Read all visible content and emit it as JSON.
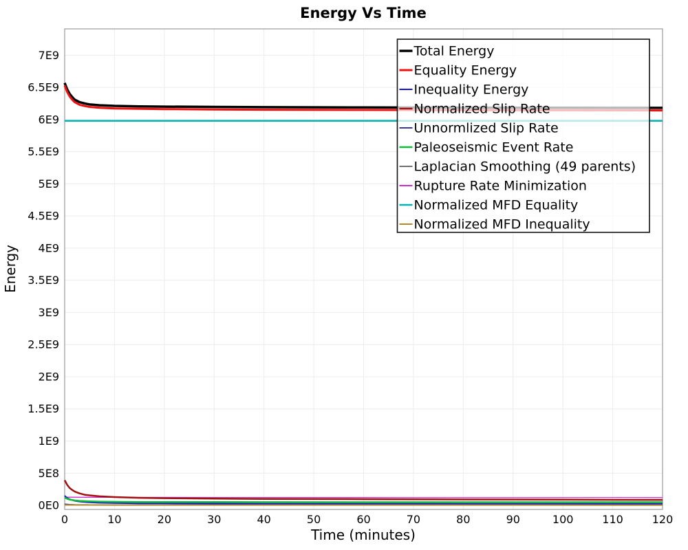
{
  "chart_data": {
    "type": "line",
    "title": "Energy Vs Time",
    "xlabel": "Time (minutes)",
    "ylabel": "Energy",
    "xlim": [
      0,
      120
    ],
    "ylim": [
      -64000000.0,
      7410000000.0
    ],
    "grid": true,
    "legend_position": "top-right-inside",
    "xticks": [
      0,
      10,
      20,
      30,
      40,
      50,
      60,
      70,
      80,
      90,
      100,
      110,
      120
    ],
    "yticks": [
      {
        "v": 0,
        "label": "0E0"
      },
      {
        "v": 500000000.0,
        "label": "5E8"
      },
      {
        "v": 1000000000.0,
        "label": "1E9"
      },
      {
        "v": 1500000000.0,
        "label": "1.5E9"
      },
      {
        "v": 2000000000.0,
        "label": "2E9"
      },
      {
        "v": 2500000000.0,
        "label": "2.5E9"
      },
      {
        "v": 3000000000.0,
        "label": "3E9"
      },
      {
        "v": 3500000000.0,
        "label": "3.5E9"
      },
      {
        "v": 4000000000.0,
        "label": "4E9"
      },
      {
        "v": 4500000000.0,
        "label": "4.5E9"
      },
      {
        "v": 5000000000.0,
        "label": "5E9"
      },
      {
        "v": 5500000000.0,
        "label": "5.5E9"
      },
      {
        "v": 6000000000.0,
        "label": "6E9"
      },
      {
        "v": 6500000000.0,
        "label": "6.5E9"
      },
      {
        "v": 7000000000.0,
        "label": "7E9"
      }
    ],
    "series": [
      {
        "name": "Total Energy",
        "color": "#000000",
        "width": 3.5,
        "points": [
          [
            0,
            6570000000.0
          ],
          [
            0.5,
            6470000000.0
          ],
          [
            1,
            6400000000.0
          ],
          [
            1.5,
            6350000000.0
          ],
          [
            2,
            6310000000.0
          ],
          [
            3,
            6270000000.0
          ],
          [
            4,
            6250000000.0
          ],
          [
            5,
            6235000000.0
          ],
          [
            7,
            6222000000.0
          ],
          [
            10,
            6212000000.0
          ],
          [
            15,
            6205000000.0
          ],
          [
            20,
            6201000000.0
          ],
          [
            30,
            6196000000.0
          ],
          [
            40,
            6192000000.0
          ],
          [
            60,
            6188000000.0
          ],
          [
            80,
            6185000000.0
          ],
          [
            100,
            6183000000.0
          ],
          [
            120,
            6181000000.0
          ]
        ]
      },
      {
        "name": "Equality Energy",
        "color": "#ee1111",
        "width": 3,
        "points": [
          [
            0,
            6530000000.0
          ],
          [
            0.5,
            6430000000.0
          ],
          [
            1,
            6360000000.0
          ],
          [
            1.5,
            6310000000.0
          ],
          [
            2,
            6270000000.0
          ],
          [
            3,
            6230000000.0
          ],
          [
            4,
            6210000000.0
          ],
          [
            5,
            6196000000.0
          ],
          [
            7,
            6183000000.0
          ],
          [
            10,
            6173000000.0
          ],
          [
            15,
            6166000000.0
          ],
          [
            20,
            6162000000.0
          ],
          [
            30,
            6157000000.0
          ],
          [
            40,
            6153000000.0
          ],
          [
            60,
            6149000000.0
          ],
          [
            80,
            6146000000.0
          ],
          [
            100,
            6144000000.0
          ],
          [
            120,
            6142000000.0
          ]
        ]
      },
      {
        "name": "Inequality Energy",
        "color": "#1515cc",
        "width": 2,
        "points": [
          [
            0,
            150000000.0
          ],
          [
            0.5,
            115000000.0
          ],
          [
            1,
            95000000.0
          ],
          [
            2,
            70000000.0
          ],
          [
            3,
            58000000.0
          ],
          [
            5,
            45000000.0
          ],
          [
            7,
            39000000.0
          ],
          [
            10,
            34000000.0
          ],
          [
            15,
            30000000.0
          ],
          [
            20,
            28500000.0
          ],
          [
            30,
            27000000.0
          ],
          [
            40,
            26000000.0
          ],
          [
            60,
            25500000.0
          ],
          [
            80,
            25000000.0
          ],
          [
            100,
            25000000.0
          ],
          [
            120,
            25000000.0
          ]
        ]
      },
      {
        "name": "Normalized Slip Rate",
        "color": "#a01010",
        "width": 2.5,
        "points": [
          [
            0,
            390000000.0
          ],
          [
            0.5,
            320000000.0
          ],
          [
            1,
            270000000.0
          ],
          [
            1.5,
            240000000.0
          ],
          [
            2,
            215000000.0
          ],
          [
            3,
            185000000.0
          ],
          [
            4,
            165000000.0
          ],
          [
            5,
            155000000.0
          ],
          [
            7,
            140000000.0
          ],
          [
            10,
            128000000.0
          ],
          [
            15,
            117000000.0
          ],
          [
            20,
            111000000.0
          ],
          [
            30,
            104000000.0
          ],
          [
            40,
            100000000.0
          ],
          [
            60,
            95000000.0
          ],
          [
            80,
            91000000.0
          ],
          [
            100,
            88000000.0
          ],
          [
            120,
            85000000.0
          ]
        ]
      },
      {
        "name": "Unnormlized Slip Rate",
        "color": "#3a3a9e",
        "width": 1.5,
        "points": [
          [
            0,
            20000000.0
          ],
          [
            1,
            14000000.0
          ],
          [
            2,
            11000000.0
          ],
          [
            5,
            9000000.0
          ],
          [
            10,
            8500000.0
          ],
          [
            30,
            8000000.0
          ],
          [
            120,
            8000000.0
          ]
        ]
      },
      {
        "name": "Paleoseismic Event Rate",
        "color": "#0fbb3a",
        "width": 2.5,
        "points": [
          [
            0,
            120000000.0
          ],
          [
            0.5,
            102000000.0
          ],
          [
            1,
            90000000.0
          ],
          [
            2,
            76000000.0
          ],
          [
            3,
            69000000.0
          ],
          [
            5,
            62000000.0
          ],
          [
            7,
            58000000.0
          ],
          [
            10,
            55000000.0
          ],
          [
            15,
            52000000.0
          ],
          [
            20,
            51000000.0
          ],
          [
            30,
            50000000.0
          ],
          [
            40,
            49000000.0
          ],
          [
            60,
            48500000.0
          ],
          [
            80,
            48000000.0
          ],
          [
            100,
            48000000.0
          ],
          [
            120,
            48000000.0
          ]
        ]
      },
      {
        "name": "Laplacian Smoothing (49 parents)",
        "color": "#707070",
        "width": 1.5,
        "points": [
          [
            0,
            6000000.0
          ],
          [
            5,
            5000000.0
          ],
          [
            120,
            4500000.0
          ]
        ]
      },
      {
        "name": "Rupture Rate Minimization",
        "color": "#cc2ecc",
        "width": 1.3,
        "points": [
          [
            0,
            126000000.0
          ],
          [
            10,
            124000000.0
          ],
          [
            30,
            122000000.0
          ],
          [
            60,
            121000000.0
          ],
          [
            120,
            120000000.0
          ]
        ]
      },
      {
        "name": "Normalized MFD Equality",
        "color": "#00b4b4",
        "width": 2.5,
        "points": [
          [
            0,
            5980000000.0
          ],
          [
            60,
            5980000000.0
          ],
          [
            120,
            5980000000.0
          ]
        ]
      },
      {
        "name": "Normalized MFD Inequality",
        "color": "#b08a2a",
        "width": 2,
        "points": [
          [
            0,
            5000000.0
          ],
          [
            10,
            4000000.0
          ],
          [
            120,
            3500000.0
          ]
        ]
      }
    ]
  }
}
